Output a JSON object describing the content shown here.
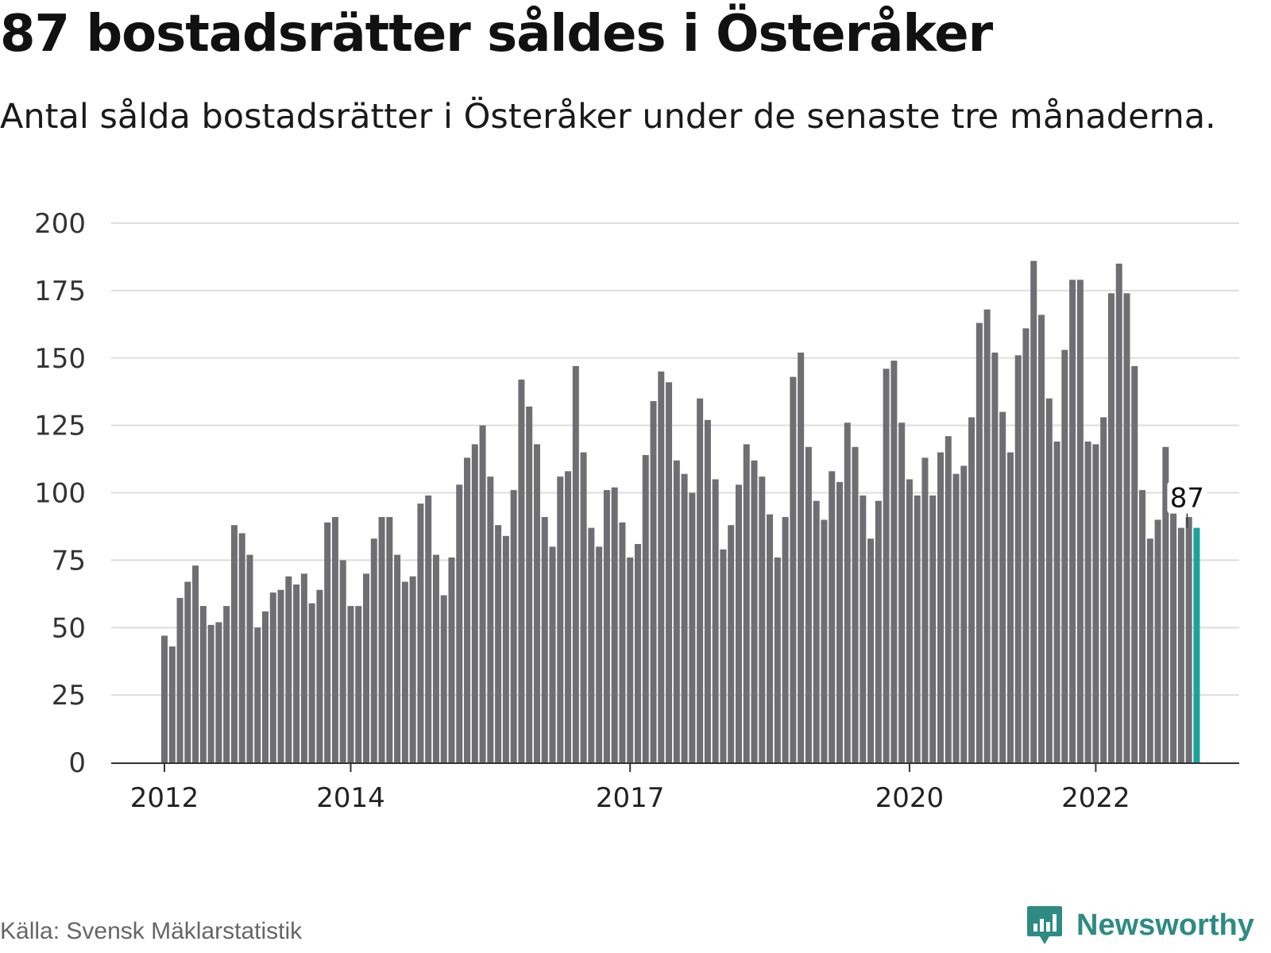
{
  "title": "87 bostadsrätter såldes i Österåker",
  "subtitle": "Antal sålda bostadsrätter i Österåker under de senaste tre månaderna.",
  "source": "Källa: Svensk Mäklarstatistik",
  "brand": "Newsworthy",
  "colors": {
    "bar": "#6e6e73",
    "highlight": "#19a39a",
    "grid": "#dedede",
    "axis": "#333333",
    "brand": "#2e8b83"
  },
  "chart_data": {
    "type": "bar",
    "ylim": [
      0,
      200
    ],
    "yticks": [
      "0",
      "25",
      "50",
      "75",
      "100",
      "125",
      "150",
      "175",
      "200"
    ],
    "xticks": [
      {
        "label": "2012",
        "index": 0
      },
      {
        "label": "2014",
        "index": 24
      },
      {
        "label": "2017",
        "index": 60
      },
      {
        "label": "2020",
        "index": 96
      },
      {
        "label": "2022",
        "index": 120
      }
    ],
    "x": [
      "2012-01",
      "2012-02",
      "2012-03",
      "2012-04",
      "2012-05",
      "2012-06",
      "2012-07",
      "2012-08",
      "2012-09",
      "2012-10",
      "2012-11",
      "2012-12",
      "2013-01",
      "2013-02",
      "2013-03",
      "2013-04",
      "2013-05",
      "2013-06",
      "2013-07",
      "2013-08",
      "2013-09",
      "2013-10",
      "2013-11",
      "2013-12",
      "2014-01",
      "2014-02",
      "2014-03",
      "2014-04",
      "2014-05",
      "2014-06",
      "2014-07",
      "2014-08",
      "2014-09",
      "2014-10",
      "2014-11",
      "2014-12",
      "2015-01",
      "2015-02",
      "2015-03",
      "2015-04",
      "2015-05",
      "2015-06",
      "2015-07",
      "2015-08",
      "2015-09",
      "2015-10",
      "2015-11",
      "2015-12",
      "2016-01",
      "2016-02",
      "2016-03",
      "2016-04",
      "2016-05",
      "2016-06",
      "2016-07",
      "2016-08",
      "2016-09",
      "2016-10",
      "2016-11",
      "2016-12",
      "2017-01",
      "2017-02",
      "2017-03",
      "2017-04",
      "2017-05",
      "2017-06",
      "2017-07",
      "2017-08",
      "2017-09",
      "2017-10",
      "2017-11",
      "2017-12",
      "2018-01",
      "2018-02",
      "2018-03",
      "2018-04",
      "2018-05",
      "2018-06",
      "2018-07",
      "2018-08",
      "2018-09",
      "2018-10",
      "2018-11",
      "2018-12",
      "2019-01",
      "2019-02",
      "2019-03",
      "2019-04",
      "2019-05",
      "2019-06",
      "2019-07",
      "2019-08",
      "2019-09",
      "2019-10",
      "2019-11",
      "2019-12",
      "2020-01",
      "2020-02",
      "2020-03",
      "2020-04",
      "2020-05",
      "2020-06",
      "2020-07",
      "2020-08",
      "2020-09",
      "2020-10",
      "2020-11",
      "2020-12",
      "2021-01",
      "2021-02",
      "2021-03",
      "2021-04",
      "2021-05",
      "2021-06",
      "2021-07",
      "2021-08",
      "2021-09",
      "2021-10",
      "2021-11",
      "2021-12",
      "2022-01",
      "2022-02",
      "2022-03",
      "2022-04",
      "2022-05",
      "2022-06",
      "2022-07",
      "2022-08",
      "2022-09",
      "2022-10",
      "2022-11",
      "2022-12",
      "2023-01",
      "2023-02"
    ],
    "values": [
      47,
      43,
      61,
      67,
      73,
      58,
      51,
      52,
      58,
      88,
      85,
      77,
      50,
      56,
      63,
      64,
      69,
      66,
      70,
      59,
      64,
      89,
      91,
      75,
      58,
      58,
      70,
      83,
      91,
      91,
      77,
      67,
      69,
      96,
      99,
      77,
      62,
      76,
      103,
      113,
      118,
      125,
      106,
      88,
      84,
      101,
      142,
      132,
      118,
      91,
      80,
      106,
      108,
      147,
      115,
      87,
      80,
      101,
      102,
      89,
      76,
      81,
      114,
      134,
      145,
      141,
      112,
      107,
      100,
      135,
      127,
      105,
      79,
      88,
      103,
      118,
      112,
      106,
      92,
      76,
      91,
      143,
      152,
      117,
      97,
      90,
      108,
      104,
      126,
      117,
      99,
      83,
      97,
      146,
      149,
      126,
      105,
      99,
      113,
      99,
      115,
      121,
      107,
      110,
      128,
      163,
      168,
      152,
      130,
      115,
      151,
      161,
      186,
      166,
      135,
      119,
      153,
      179,
      179,
      119,
      118,
      128,
      174,
      185,
      174,
      147,
      101,
      83,
      90,
      117,
      104,
      87,
      91,
      87
    ],
    "highlight_label": "87"
  }
}
